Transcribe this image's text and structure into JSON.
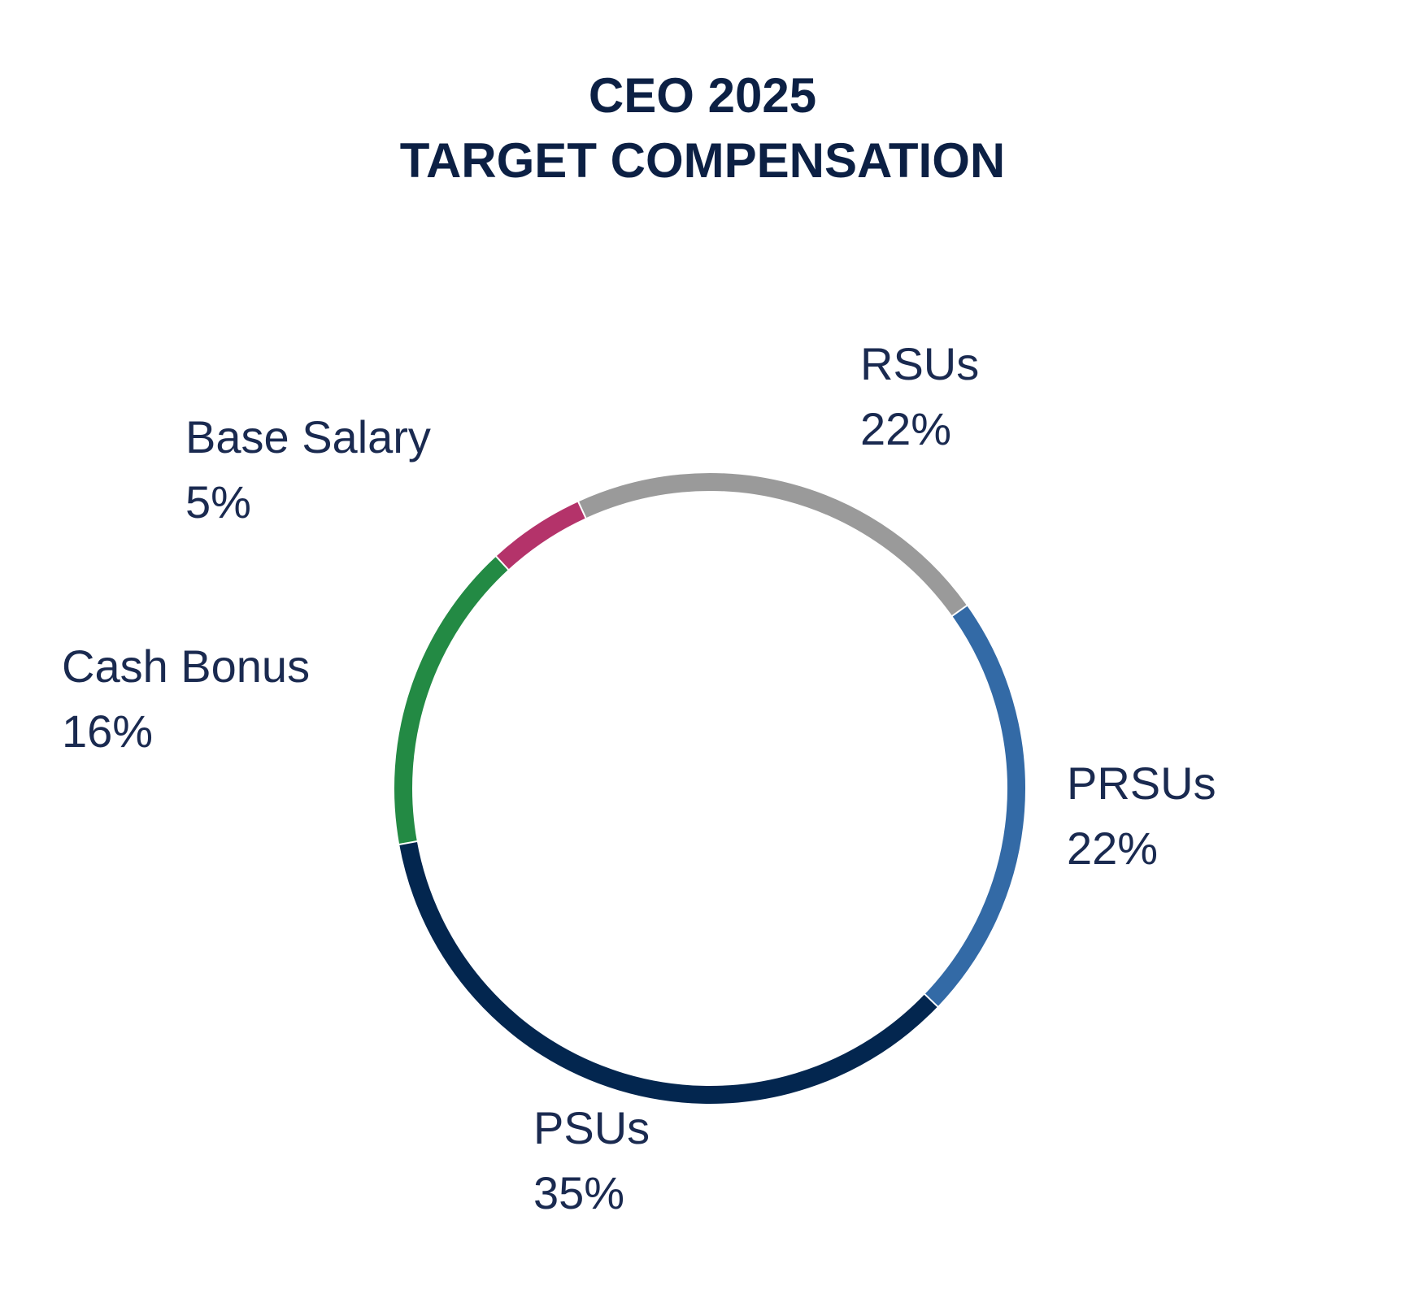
{
  "title_lines": [
    "CEO 2025",
    "TARGET COMPENSATION"
  ],
  "chart_data": {
    "type": "pie",
    "style": "donut-ring",
    "title": "CEO 2025 TARGET COMPENSATION",
    "slices": [
      {
        "label": "RSUs",
        "value": 22,
        "display": "22%",
        "color": "#9a9a9a"
      },
      {
        "label": "PRSUs",
        "value": 22,
        "display": "22%",
        "color": "#336aa6"
      },
      {
        "label": "PSUs",
        "value": 35,
        "display": "35%",
        "color": "#03264f"
      },
      {
        "label": "Cash Bonus",
        "value": 16,
        "display": "16%",
        "color": "#238a44"
      },
      {
        "label": "Base Salary",
        "value": 5,
        "display": "5%",
        "color": "#b4336a"
      }
    ]
  }
}
